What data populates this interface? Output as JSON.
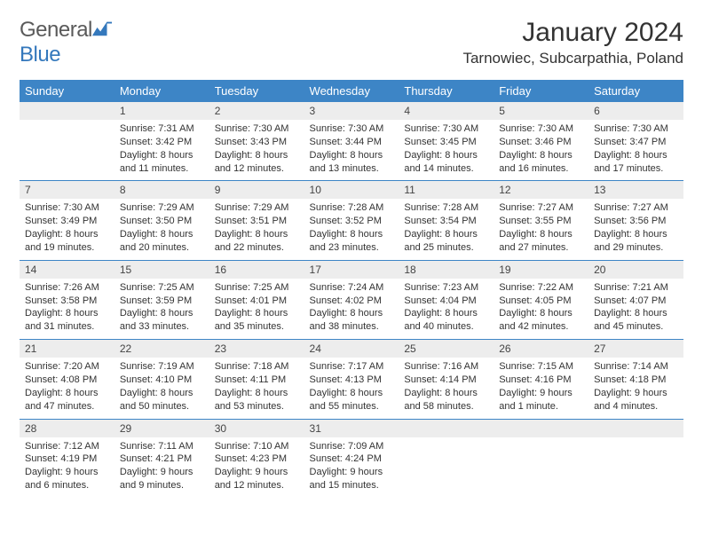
{
  "header": {
    "logo_prefix": "General",
    "logo_suffix": "Blue",
    "month_title": "January 2024",
    "location": "Tarnowiec, Subcarpathia, Poland"
  },
  "colors": {
    "header_bg": "#3d85c6",
    "header_text": "#ffffff",
    "daynum_bg": "#ededed",
    "row_divider": "#3d85c6",
    "logo_blue": "#3478bc",
    "logo_gray": "#5a5a5a",
    "page_bg": "#ffffff"
  },
  "typography": {
    "title_fontsize": 30,
    "location_fontsize": 17,
    "dayheader_fontsize": 13,
    "daynum_fontsize": 12,
    "cell_fontsize": 11
  },
  "calendar": {
    "day_headers": [
      "Sunday",
      "Monday",
      "Tuesday",
      "Wednesday",
      "Thursday",
      "Friday",
      "Saturday"
    ],
    "weeks": [
      {
        "nums": [
          "",
          "1",
          "2",
          "3",
          "4",
          "5",
          "6"
        ],
        "cells": [
          {
            "sunrise": "",
            "sunset": "",
            "daylight": ""
          },
          {
            "sunrise": "Sunrise: 7:31 AM",
            "sunset": "Sunset: 3:42 PM",
            "daylight": "Daylight: 8 hours and 11 minutes."
          },
          {
            "sunrise": "Sunrise: 7:30 AM",
            "sunset": "Sunset: 3:43 PM",
            "daylight": "Daylight: 8 hours and 12 minutes."
          },
          {
            "sunrise": "Sunrise: 7:30 AM",
            "sunset": "Sunset: 3:44 PM",
            "daylight": "Daylight: 8 hours and 13 minutes."
          },
          {
            "sunrise": "Sunrise: 7:30 AM",
            "sunset": "Sunset: 3:45 PM",
            "daylight": "Daylight: 8 hours and 14 minutes."
          },
          {
            "sunrise": "Sunrise: 7:30 AM",
            "sunset": "Sunset: 3:46 PM",
            "daylight": "Daylight: 8 hours and 16 minutes."
          },
          {
            "sunrise": "Sunrise: 7:30 AM",
            "sunset": "Sunset: 3:47 PM",
            "daylight": "Daylight: 8 hours and 17 minutes."
          }
        ]
      },
      {
        "nums": [
          "7",
          "8",
          "9",
          "10",
          "11",
          "12",
          "13"
        ],
        "cells": [
          {
            "sunrise": "Sunrise: 7:30 AM",
            "sunset": "Sunset: 3:49 PM",
            "daylight": "Daylight: 8 hours and 19 minutes."
          },
          {
            "sunrise": "Sunrise: 7:29 AM",
            "sunset": "Sunset: 3:50 PM",
            "daylight": "Daylight: 8 hours and 20 minutes."
          },
          {
            "sunrise": "Sunrise: 7:29 AM",
            "sunset": "Sunset: 3:51 PM",
            "daylight": "Daylight: 8 hours and 22 minutes."
          },
          {
            "sunrise": "Sunrise: 7:28 AM",
            "sunset": "Sunset: 3:52 PM",
            "daylight": "Daylight: 8 hours and 23 minutes."
          },
          {
            "sunrise": "Sunrise: 7:28 AM",
            "sunset": "Sunset: 3:54 PM",
            "daylight": "Daylight: 8 hours and 25 minutes."
          },
          {
            "sunrise": "Sunrise: 7:27 AM",
            "sunset": "Sunset: 3:55 PM",
            "daylight": "Daylight: 8 hours and 27 minutes."
          },
          {
            "sunrise": "Sunrise: 7:27 AM",
            "sunset": "Sunset: 3:56 PM",
            "daylight": "Daylight: 8 hours and 29 minutes."
          }
        ]
      },
      {
        "nums": [
          "14",
          "15",
          "16",
          "17",
          "18",
          "19",
          "20"
        ],
        "cells": [
          {
            "sunrise": "Sunrise: 7:26 AM",
            "sunset": "Sunset: 3:58 PM",
            "daylight": "Daylight: 8 hours and 31 minutes."
          },
          {
            "sunrise": "Sunrise: 7:25 AM",
            "sunset": "Sunset: 3:59 PM",
            "daylight": "Daylight: 8 hours and 33 minutes."
          },
          {
            "sunrise": "Sunrise: 7:25 AM",
            "sunset": "Sunset: 4:01 PM",
            "daylight": "Daylight: 8 hours and 35 minutes."
          },
          {
            "sunrise": "Sunrise: 7:24 AM",
            "sunset": "Sunset: 4:02 PM",
            "daylight": "Daylight: 8 hours and 38 minutes."
          },
          {
            "sunrise": "Sunrise: 7:23 AM",
            "sunset": "Sunset: 4:04 PM",
            "daylight": "Daylight: 8 hours and 40 minutes."
          },
          {
            "sunrise": "Sunrise: 7:22 AM",
            "sunset": "Sunset: 4:05 PM",
            "daylight": "Daylight: 8 hours and 42 minutes."
          },
          {
            "sunrise": "Sunrise: 7:21 AM",
            "sunset": "Sunset: 4:07 PM",
            "daylight": "Daylight: 8 hours and 45 minutes."
          }
        ]
      },
      {
        "nums": [
          "21",
          "22",
          "23",
          "24",
          "25",
          "26",
          "27"
        ],
        "cells": [
          {
            "sunrise": "Sunrise: 7:20 AM",
            "sunset": "Sunset: 4:08 PM",
            "daylight": "Daylight: 8 hours and 47 minutes."
          },
          {
            "sunrise": "Sunrise: 7:19 AM",
            "sunset": "Sunset: 4:10 PM",
            "daylight": "Daylight: 8 hours and 50 minutes."
          },
          {
            "sunrise": "Sunrise: 7:18 AM",
            "sunset": "Sunset: 4:11 PM",
            "daylight": "Daylight: 8 hours and 53 minutes."
          },
          {
            "sunrise": "Sunrise: 7:17 AM",
            "sunset": "Sunset: 4:13 PM",
            "daylight": "Daylight: 8 hours and 55 minutes."
          },
          {
            "sunrise": "Sunrise: 7:16 AM",
            "sunset": "Sunset: 4:14 PM",
            "daylight": "Daylight: 8 hours and 58 minutes."
          },
          {
            "sunrise": "Sunrise: 7:15 AM",
            "sunset": "Sunset: 4:16 PM",
            "daylight": "Daylight: 9 hours and 1 minute."
          },
          {
            "sunrise": "Sunrise: 7:14 AM",
            "sunset": "Sunset: 4:18 PM",
            "daylight": "Daylight: 9 hours and 4 minutes."
          }
        ]
      },
      {
        "nums": [
          "28",
          "29",
          "30",
          "31",
          "",
          "",
          ""
        ],
        "cells": [
          {
            "sunrise": "Sunrise: 7:12 AM",
            "sunset": "Sunset: 4:19 PM",
            "daylight": "Daylight: 9 hours and 6 minutes."
          },
          {
            "sunrise": "Sunrise: 7:11 AM",
            "sunset": "Sunset: 4:21 PM",
            "daylight": "Daylight: 9 hours and 9 minutes."
          },
          {
            "sunrise": "Sunrise: 7:10 AM",
            "sunset": "Sunset: 4:23 PM",
            "daylight": "Daylight: 9 hours and 12 minutes."
          },
          {
            "sunrise": "Sunrise: 7:09 AM",
            "sunset": "Sunset: 4:24 PM",
            "daylight": "Daylight: 9 hours and 15 minutes."
          },
          {
            "sunrise": "",
            "sunset": "",
            "daylight": ""
          },
          {
            "sunrise": "",
            "sunset": "",
            "daylight": ""
          },
          {
            "sunrise": "",
            "sunset": "",
            "daylight": ""
          }
        ]
      }
    ]
  }
}
